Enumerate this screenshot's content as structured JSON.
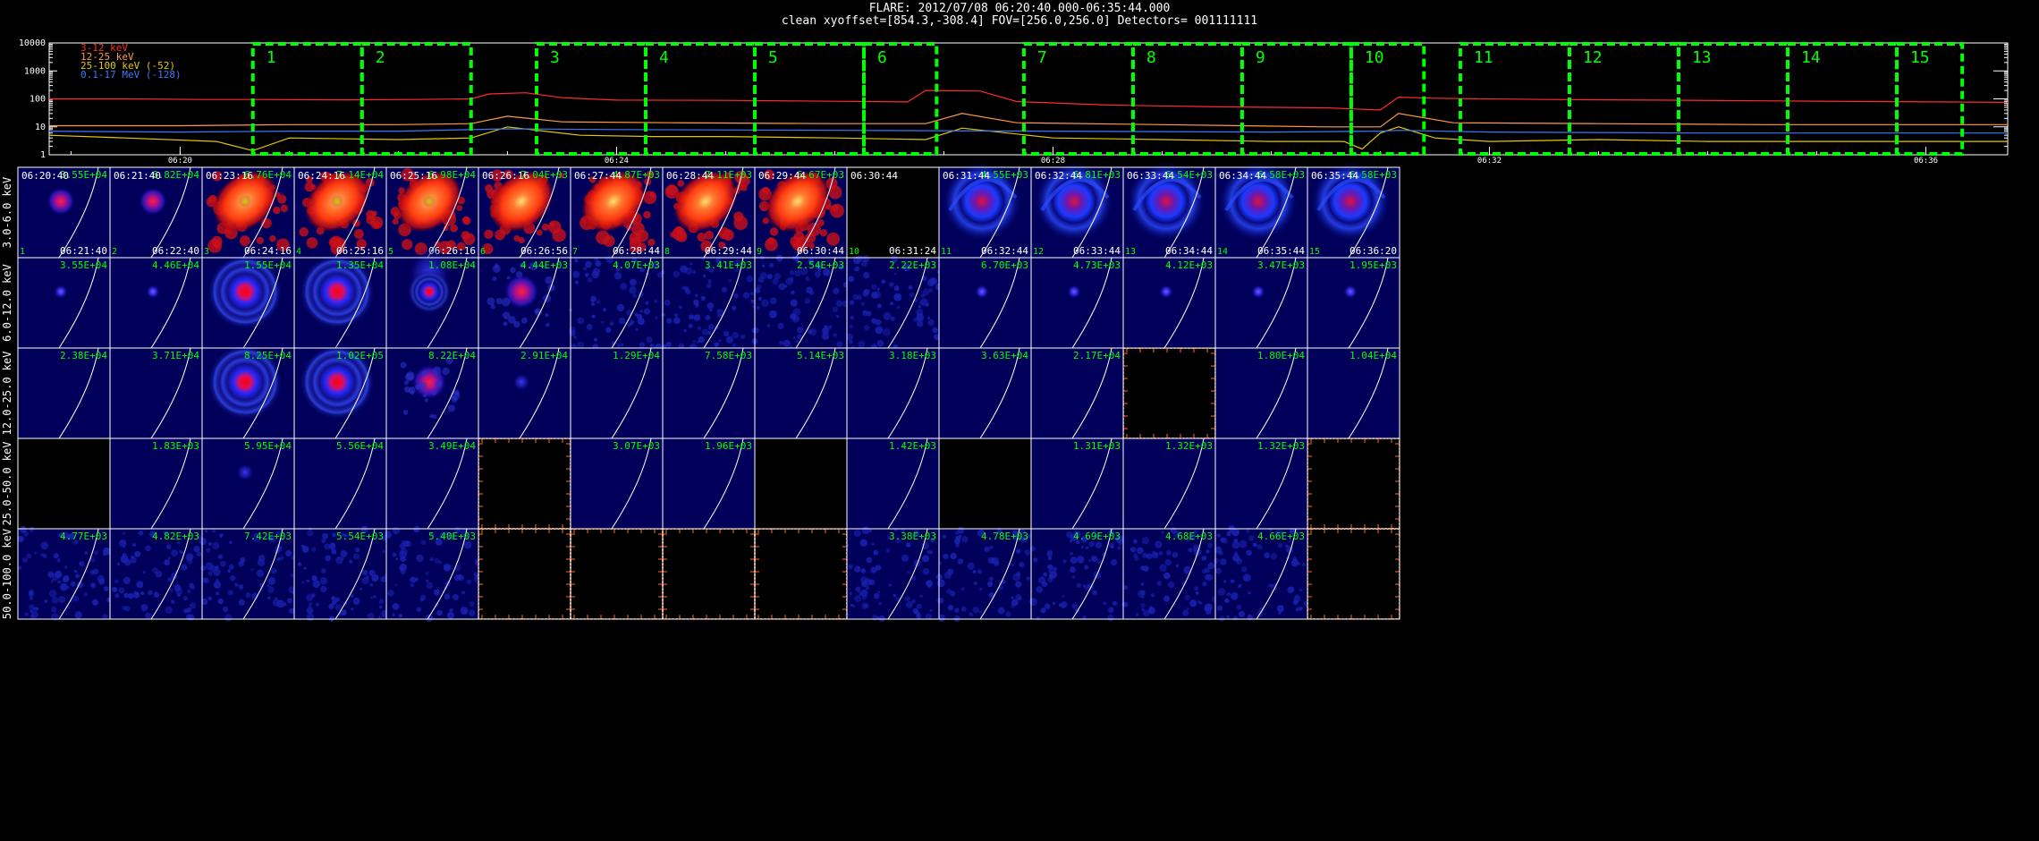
{
  "header": {
    "line1": "FLARE: 2012/07/08 06:20:40.000-06:35:44.000",
    "line2": "clean    xyoffset=[854.3,-308.4]    FOV=[256.0,256.0]    Detectors= 001111111"
  },
  "colors": {
    "background": "#000000",
    "frame": "#ffffff",
    "interval_box": "#00ff00",
    "tile_label": "#00ff00",
    "empty_tile_axes": "#ff6a2a",
    "band_3_12": "#ff2a2a",
    "band_12_25": "#ff9a4a",
    "band_25_100": "#e6c800",
    "band_01_17": "#3a78ff"
  },
  "lightcurve": {
    "chart_data": {
      "type": "line",
      "ylog": true,
      "ylim": [
        1,
        10000
      ],
      "yticks": [
        "1",
        "10",
        "100",
        "1000",
        "10000"
      ],
      "xlim": [
        "06:18:48",
        "06:36:45"
      ],
      "xticks": [
        "06:20",
        "06:24",
        "06:28",
        "06:32",
        "06:36"
      ],
      "legend": [
        "3-12 keV",
        "12-25 keV",
        "25-100 keV (-52)",
        "0.1-17 MeV (-128)"
      ],
      "legend_position": "top-left",
      "intervals": [
        {
          "label": "1",
          "start": "06:20:40",
          "end": "06:21:40"
        },
        {
          "label": "2",
          "start": "06:21:40",
          "end": "06:22:40"
        },
        {
          "label": "3",
          "start": "06:23:16",
          "end": "06:24:16"
        },
        {
          "label": "4",
          "start": "06:24:16",
          "end": "06:25:16"
        },
        {
          "label": "5",
          "start": "06:25:16",
          "end": "06:26:16"
        },
        {
          "label": "6",
          "start": "06:26:16",
          "end": "06:26:56"
        },
        {
          "label": "7",
          "start": "06:27:44",
          "end": "06:28:44"
        },
        {
          "label": "8",
          "start": "06:28:44",
          "end": "06:29:44"
        },
        {
          "label": "9",
          "start": "06:29:44",
          "end": "06:30:44"
        },
        {
          "label": "10",
          "start": "06:30:44",
          "end": "06:31:24"
        },
        {
          "label": "11",
          "start": "06:31:44",
          "end": "06:32:44"
        },
        {
          "label": "12",
          "start": "06:32:44",
          "end": "06:33:44"
        },
        {
          "label": "13",
          "start": "06:33:44",
          "end": "06:34:44"
        },
        {
          "label": "14",
          "start": "06:34:44",
          "end": "06:35:44"
        },
        {
          "label": "15",
          "start": "06:35:44",
          "end": "06:36:20"
        }
      ],
      "series": [
        {
          "name": "3-12 keV",
          "color": "#ff2a2a",
          "x": [
            "06:18:48",
            "06:19:30",
            "06:20:10",
            "06:20:40",
            "06:21:30",
            "06:22:10",
            "06:22:40",
            "06:22:50",
            "06:23:10",
            "06:23:30",
            "06:24:00",
            "06:25:00",
            "06:26:00",
            "06:26:40",
            "06:26:50",
            "06:27:20",
            "06:27:40",
            "06:28:30",
            "06:29:30",
            "06:30:30",
            "06:31:00",
            "06:31:10",
            "06:31:30",
            "06:32:30",
            "06:33:30",
            "06:34:30",
            "06:35:30",
            "06:36:45"
          ],
          "y": [
            100,
            100,
            95,
            95,
            92,
            95,
            100,
            150,
            165,
            110,
            90,
            88,
            82,
            78,
            200,
            190,
            80,
            60,
            52,
            48,
            40,
            115,
            105,
            95,
            90,
            85,
            80,
            75
          ]
        },
        {
          "name": "12-25 keV",
          "color": "#ff9a4a",
          "x": [
            "06:18:48",
            "06:20:00",
            "06:21:00",
            "06:22:00",
            "06:22:40",
            "06:23:00",
            "06:23:30",
            "06:24:30",
            "06:26:00",
            "06:26:50",
            "06:27:10",
            "06:27:40",
            "06:29:00",
            "06:30:30",
            "06:31:00",
            "06:31:10",
            "06:31:40",
            "06:33:00",
            "06:34:30",
            "06:36:45"
          ],
          "y": [
            11,
            11,
            12,
            12,
            13,
            24,
            15,
            14,
            13,
            13,
            30,
            14,
            12,
            10,
            10,
            30,
            14,
            13,
            12,
            12
          ]
        },
        {
          "name": "25-100 keV (-52)",
          "color": "#e6c800",
          "x": [
            "06:18:48",
            "06:19:30",
            "06:20:20",
            "06:20:40",
            "06:21:00",
            "06:22:00",
            "06:22:40",
            "06:23:00",
            "06:23:40",
            "06:24:20",
            "06:25:00",
            "06:26:00",
            "06:26:50",
            "06:27:10",
            "06:28:00",
            "06:29:00",
            "06:30:00",
            "06:30:40",
            "06:30:50",
            "06:31:00",
            "06:31:10",
            "06:31:30",
            "06:32:00",
            "06:33:00",
            "06:34:00",
            "06:35:00",
            "06:36:45"
          ],
          "y": [
            5,
            4,
            3,
            1.4,
            4,
            3.5,
            4,
            10,
            5,
            4.5,
            4.5,
            4,
            3.5,
            9,
            4,
            3.5,
            3,
            3,
            1.6,
            6,
            10,
            4,
            3,
            3.5,
            3,
            3,
            3
          ]
        },
        {
          "name": "0.1-17 MeV (-128)",
          "color": "#3a78ff",
          "x": [
            "06:18:48",
            "06:20:00",
            "06:21:00",
            "06:22:00",
            "06:23:00",
            "06:24:00",
            "06:26:00",
            "06:28:00",
            "06:30:00",
            "06:31:00",
            "06:31:10",
            "06:32:00",
            "06:34:00",
            "06:36:45"
          ],
          "y": [
            7,
            6.5,
            7,
            7,
            8.5,
            8,
            7.5,
            7,
            6.5,
            7,
            7.5,
            6.5,
            6,
            6
          ]
        }
      ]
    }
  },
  "image_grid": {
    "chart_data": {
      "type": "heatmap",
      "band_labels": [
        "3.0-6.0 keV",
        "6.0-12.0 keV",
        "12.0-25.0 keV",
        "25.0-50.0 keV",
        "50.0-100.0 keV"
      ],
      "start_times": [
        "06:20:40",
        "06:21:40",
        "06:23:16",
        "06:24:16",
        "06:25:16",
        "06:26:16",
        "06:27:44",
        "06:28:44",
        "06:29:44",
        "06:30:44",
        "06:31:44",
        "06:32:44",
        "06:33:44",
        "06:34:44",
        "06:35:44"
      ],
      "end_times": [
        "06:21:40",
        "06:22:40",
        "06:24:16",
        "06:25:16",
        "06:26:16",
        "06:26:56",
        "06:28:44",
        "06:29:44",
        "06:30:44",
        "06:31:24",
        "06:32:44",
        "06:33:44",
        "06:34:44",
        "06:35:44",
        "06:36:20"
      ],
      "interval_numbers": [
        "1",
        "2",
        "3",
        "4",
        "5",
        "6",
        "7",
        "8",
        "9",
        "10",
        "11",
        "12",
        "13",
        "14",
        "15"
      ],
      "peaks": [
        [
          "3.55E+04",
          "6.82E+04",
          "6.76E+04",
          "7.14E+04",
          "6.98E+04",
          "7.04E+03",
          "4.87E+03",
          "7.11E+03",
          "6.67E+03",
          "",
          "4.55E+03",
          "6.81E+03",
          "6.54E+03",
          "6.58E+03",
          "6.58E+03"
        ],
        [
          "3.55E+04",
          "4.46E+04",
          "1.55E+04",
          "1.35E+04",
          "1.08E+04",
          "4.44E+03",
          "4.07E+03",
          "3.41E+03",
          "2.54E+03",
          "2.22E+03",
          "6.70E+03",
          "4.73E+03",
          "4.12E+03",
          "3.47E+03",
          "1.95E+03"
        ],
        [
          "2.38E+04",
          "3.71E+04",
          "8.25E+04",
          "1.02E+05",
          "8.22E+04",
          "2.91E+04",
          "1.29E+04",
          "7.58E+03",
          "5.14E+03",
          "3.18E+03",
          "3.63E+04",
          "2.17E+04",
          "",
          "1.80E+04",
          "1.04E+04"
        ],
        [
          "",
          "1.83E+03",
          "5.95E+04",
          "5.56E+04",
          "3.49E+04",
          "",
          "3.07E+03",
          "1.96E+03",
          "",
          "1.42E+03",
          "",
          "1.31E+03",
          "1.32E+03",
          "1.32E+03",
          ""
        ],
        [
          "4.77E+03",
          "4.82E+03",
          "7.42E+03",
          "5.54E+03",
          "5.40E+03",
          "",
          "",
          "",
          "",
          "3.38E+03",
          "4.78E+03",
          "4.69E+03",
          "4.68E+03",
          "4.66E+03",
          ""
        ]
      ],
      "tile_style": [
        [
          "dot",
          "dot",
          "fire",
          "fire",
          "fire",
          "fire",
          "fire",
          "fire",
          "fire",
          "empty",
          "spiral",
          "spiral",
          "spiral",
          "spiral",
          "spiral"
        ],
        [
          "small",
          "small",
          "rings",
          "rings",
          "plume",
          "source",
          "noise",
          "noise",
          "noise",
          "noise",
          "small",
          "small",
          "small",
          "small",
          "small"
        ],
        [
          "plain",
          "plain",
          "rings",
          "rings",
          "source",
          "faint",
          "plain",
          "plain",
          "plain",
          "plain",
          "plain",
          "plain",
          "empty-axes",
          "plain",
          "plain"
        ],
        [
          "empty",
          "plain",
          "faint",
          "plain",
          "plain",
          "empty-axes",
          "plain",
          "plain",
          "empty",
          "plain",
          "empty",
          "plain",
          "plain",
          "plain",
          "empty-axes"
        ],
        [
          "noise",
          "noise",
          "noise",
          "noise",
          "noise",
          "empty-axes",
          "empty-axes",
          "empty-axes",
          "empty-axes",
          "noise",
          "noise",
          "noise",
          "noise",
          "noise",
          "empty-axes"
        ]
      ]
    }
  }
}
